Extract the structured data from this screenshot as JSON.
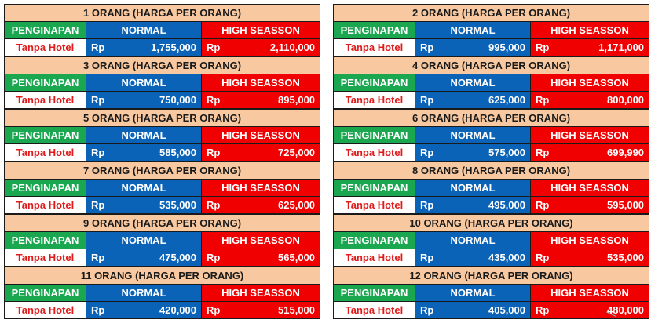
{
  "colors": {
    "title_bg": "#f8c9a0",
    "lodging_header_bg": "#1aa750",
    "normal_bg": "#0b63b8",
    "high_season_bg": "#f00000",
    "lodging_value_text": "#e01b1b"
  },
  "labels": {
    "lodging_header": "PENGINAPAN",
    "normal_header": "NORMAL",
    "high_header": "HIGH SEASSON",
    "currency": "Rp"
  },
  "tables": [
    {
      "title": "1 ORANG (HARGA PER ORANG)",
      "lodging": "Tanpa Hotel",
      "normal_price": "1,755,000",
      "high_price": "2,110,000"
    },
    {
      "title": "2 ORANG (HARGA PER ORANG)",
      "lodging": "Tanpa Hotel",
      "normal_price": "995,000",
      "high_price": "1,171,000"
    },
    {
      "title": "3 ORANG (HARGA PER ORANG)",
      "lodging": "Tanpa Hotel",
      "normal_price": "750,000",
      "high_price": "895,000"
    },
    {
      "title": "4 ORANG (HARGA PER ORANG)",
      "lodging": "Tanpa Hotel",
      "normal_price": "625,000",
      "high_price": "800,000"
    },
    {
      "title": "5 ORANG (HARGA PER ORANG)",
      "lodging": "Tanpa Hotel",
      "normal_price": "585,000",
      "high_price": "725,000"
    },
    {
      "title": "6 ORANG (HARGA PER ORANG)",
      "lodging": "Tanpa Hotel",
      "normal_price": "575,000",
      "high_price": "699,990"
    },
    {
      "title": "7 ORANG (HARGA PER ORANG)",
      "lodging": "Tanpa Hotel",
      "normal_price": "535,000",
      "high_price": "625,000"
    },
    {
      "title": "8 ORANG (HARGA PER ORANG)",
      "lodging": "Tanpa Hotel",
      "normal_price": "495,000",
      "high_price": "595,000"
    },
    {
      "title": "9 ORANG (HARGA PER ORANG)",
      "lodging": "Tanpa Hotel",
      "normal_price": "475,000",
      "high_price": "565,000"
    },
    {
      "title": "10 ORANG (HARGA PER ORANG)",
      "lodging": "Tanpa Hotel",
      "normal_price": "435,000",
      "high_price": "535,000"
    },
    {
      "title": "11 ORANG (HARGA PER ORANG)",
      "lodging": "Tanpa Hotel",
      "normal_price": "420,000",
      "high_price": "515,000"
    },
    {
      "title": "12 ORANG (HARGA PER ORANG)",
      "lodging": "Tanpa Hotel",
      "normal_price": "405,000",
      "high_price": "480,000"
    }
  ]
}
